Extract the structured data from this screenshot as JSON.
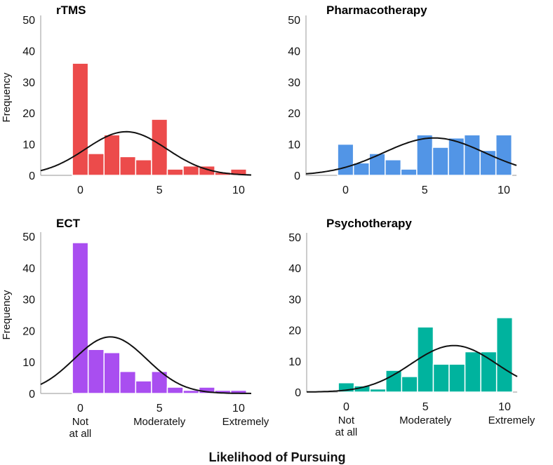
{
  "chart_data": [
    {
      "type": "bar",
      "title": "rTMS",
      "ylabel": "Frequency",
      "xlabel": "",
      "categories": [
        0,
        1,
        2,
        3,
        4,
        5,
        6,
        7,
        8,
        9,
        10
      ],
      "values": [
        36,
        7,
        13,
        6,
        5,
        18,
        2,
        3,
        3,
        1,
        2
      ],
      "xticks": [
        "0",
        "5",
        "10"
      ],
      "yticks": [
        "0",
        "10",
        "20",
        "30",
        "40",
        "50"
      ],
      "ylim": [
        0,
        50
      ],
      "xlim": [
        -2.5,
        10.8
      ],
      "color": "#ec4b4b",
      "normal_fit": {
        "mean": 2.9,
        "sd": 2.56,
        "peak": 14
      }
    },
    {
      "type": "bar",
      "title": "Pharmacotherapy",
      "ylabel": "",
      "xlabel": "",
      "categories": [
        0,
        1,
        2,
        3,
        4,
        5,
        6,
        7,
        8,
        9,
        10
      ],
      "values": [
        10,
        4,
        7,
        5,
        2,
        13,
        9,
        12,
        13,
        8,
        13
      ],
      "xticks": [
        "0",
        "5",
        "10"
      ],
      "yticks": [
        "0",
        "10",
        "20",
        "30",
        "40",
        "50"
      ],
      "ylim": [
        0,
        50
      ],
      "xlim": [
        -2.5,
        10.8
      ],
      "color": "#5295e6",
      "normal_fit": {
        "mean": 5.6,
        "sd": 3.2,
        "peak": 12
      }
    },
    {
      "type": "bar",
      "title": "ECT",
      "ylabel": "Frequency",
      "xlabel": "",
      "categories": [
        0,
        1,
        2,
        3,
        4,
        5,
        6,
        7,
        8,
        9,
        10
      ],
      "values": [
        48,
        14,
        13,
        7,
        4,
        7,
        2,
        1,
        2,
        1,
        1
      ],
      "xticks": [
        "0",
        "5",
        "10"
      ],
      "yticks": [
        "0",
        "10",
        "20",
        "30",
        "40",
        "50"
      ],
      "ylim": [
        0,
        50
      ],
      "xlim": [
        -2.5,
        10.8
      ],
      "color": "#a94ef0",
      "normal_fit": {
        "mean": 1.9,
        "sd": 2.3,
        "peak": 18
      },
      "anchor_labels": [
        "Not\nat all",
        "Moderately",
        "Extremely"
      ]
    },
    {
      "type": "bar",
      "title": "Psychotherapy",
      "ylabel": "",
      "xlabel": "",
      "categories": [
        0,
        1,
        2,
        3,
        4,
        5,
        6,
        7,
        8,
        9,
        10
      ],
      "values": [
        3,
        2,
        1,
        7,
        5,
        21,
        9,
        9,
        13,
        13,
        24
      ],
      "xticks": [
        "0",
        "5",
        "10"
      ],
      "yticks": [
        "0",
        "10",
        "20",
        "30",
        "40",
        "50"
      ],
      "ylim": [
        0,
        50
      ],
      "xlim": [
        -2.5,
        10.8
      ],
      "color": "#00b39e",
      "normal_fit": {
        "mean": 6.8,
        "sd": 2.7,
        "peak": 15
      },
      "anchor_labels": [
        "Not\nat all",
        "Moderately",
        "Extremely"
      ]
    }
  ],
  "shared_xlabel": "Likelihood of Pursuing"
}
